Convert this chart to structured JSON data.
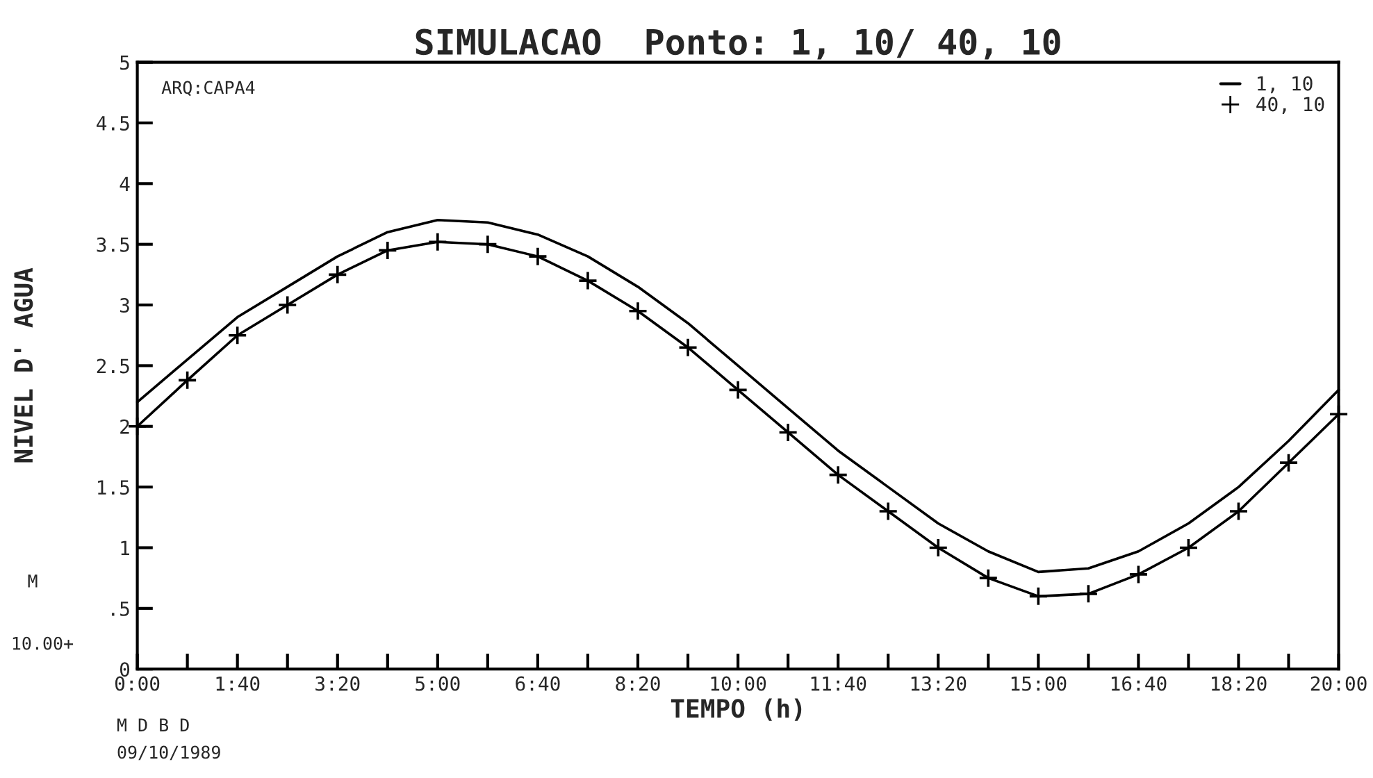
{
  "chart_data": {
    "type": "line",
    "title": "SIMULACAO  Ponto: 1, 10/ 40, 10",
    "xlabel": "TEMPO (h)",
    "ylabel": "NIVEL D' AGUA",
    "x": [
      0,
      0.8333,
      1.6667,
      2.5,
      3.3333,
      4.1667,
      5,
      5.8333,
      6.6667,
      7.5,
      8.3333,
      9.1667,
      10,
      10.8333,
      11.6667,
      12.5,
      13.3333,
      14.1667,
      15,
      15.8333,
      16.6667,
      17.5,
      18.3333,
      19.1667,
      20
    ],
    "series": [
      {
        "name": "1, 10",
        "color": "#000000",
        "marker": "none",
        "values": [
          2.2,
          2.55,
          2.9,
          3.15,
          3.4,
          3.6,
          3.7,
          3.68,
          3.58,
          3.4,
          3.15,
          2.85,
          2.5,
          2.15,
          1.8,
          1.5,
          1.2,
          0.97,
          0.8,
          0.83,
          0.97,
          1.2,
          1.5,
          1.88,
          2.3
        ]
      },
      {
        "name": "40, 10",
        "color": "#000000",
        "marker": "cross",
        "values": [
          2.0,
          2.38,
          2.75,
          3.0,
          3.25,
          3.45,
          3.52,
          3.5,
          3.4,
          3.2,
          2.95,
          2.65,
          2.3,
          1.95,
          1.6,
          1.3,
          1.0,
          0.75,
          0.6,
          0.62,
          0.78,
          1.0,
          1.3,
          1.7,
          2.1
        ]
      }
    ],
    "xlim": [
      0,
      20
    ],
    "xticks": [
      {
        "value": 0,
        "label": "0:00"
      },
      {
        "value": 0.8333,
        "label": null
      },
      {
        "value": 1.6667,
        "label": "1:40"
      },
      {
        "value": 2.5,
        "label": null
      },
      {
        "value": 3.3333,
        "label": "3:20"
      },
      {
        "value": 4.1667,
        "label": null
      },
      {
        "value": 5,
        "label": "5:00"
      },
      {
        "value": 5.8333,
        "label": null
      },
      {
        "value": 6.6667,
        "label": "6:40"
      },
      {
        "value": 7.5,
        "label": null
      },
      {
        "value": 8.3333,
        "label": "8:20"
      },
      {
        "value": 9.1667,
        "label": null
      },
      {
        "value": 10,
        "label": "10:00"
      },
      {
        "value": 10.8333,
        "label": null
      },
      {
        "value": 11.6667,
        "label": "11:40"
      },
      {
        "value": 12.5,
        "label": null
      },
      {
        "value": 13.3333,
        "label": "13:20"
      },
      {
        "value": 14.1667,
        "label": null
      },
      {
        "value": 15,
        "label": "15:00"
      },
      {
        "value": 15.8333,
        "label": null
      },
      {
        "value": 16.6667,
        "label": "16:40"
      },
      {
        "value": 17.5,
        "label": null
      },
      {
        "value": 18.3333,
        "label": "18:20"
      },
      {
        "value": 19.1667,
        "label": null
      },
      {
        "value": 20,
        "label": "20:00"
      }
    ],
    "ylim": [
      0,
      5
    ],
    "yticks": [
      0,
      {
        "value": 0.5,
        "label": ".5"
      },
      1,
      1.5,
      2,
      2.5,
      3,
      3.5,
      4,
      4.5,
      5
    ],
    "annotations": [
      "ARQ:CAPA4",
      "M",
      "10.00+",
      "M D B D",
      "09/10/1989"
    ],
    "legend": "top right",
    "grid": false,
    "line_style": "solid"
  }
}
